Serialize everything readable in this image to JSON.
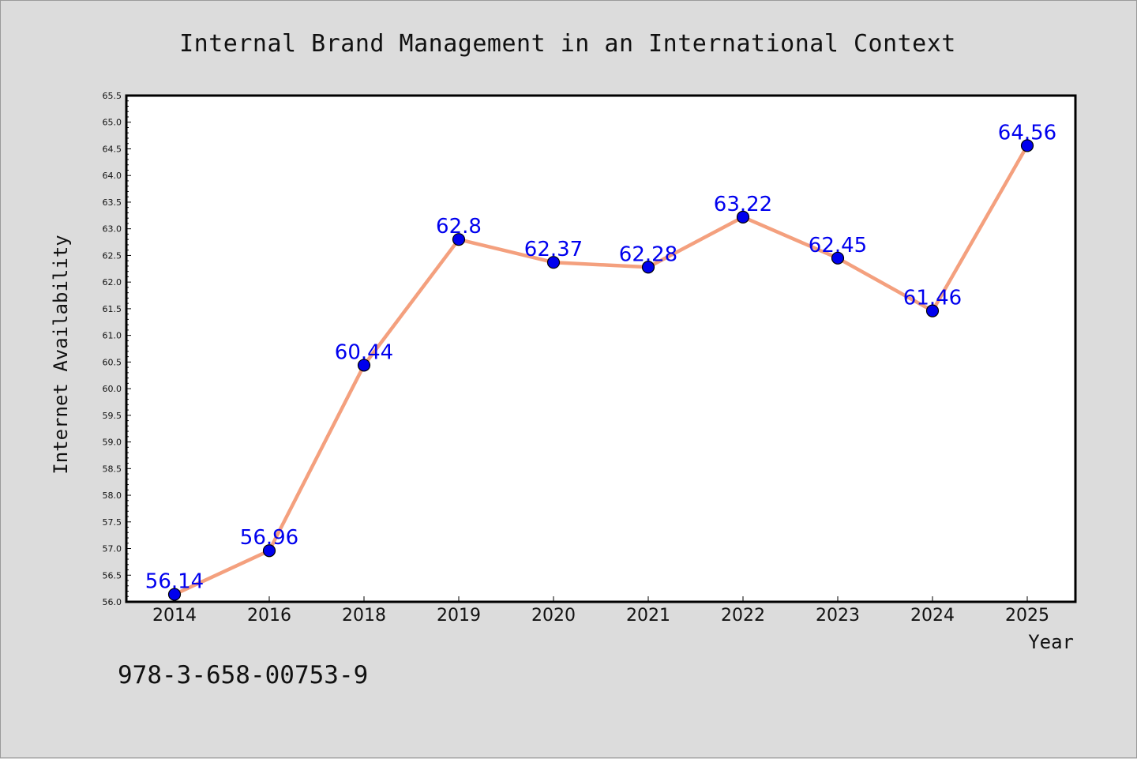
{
  "chart_data": {
    "type": "line",
    "title": "Internal Brand Management in an International Context",
    "xlabel": "Year",
    "ylabel": "Internet Availability",
    "categories": [
      "2014",
      "2016",
      "2018",
      "2019",
      "2020",
      "2021",
      "2022",
      "2023",
      "2024",
      "2025"
    ],
    "series": [
      {
        "values": [
          56.14,
          56.96,
          60.44,
          62.8,
          62.37,
          62.28,
          63.22,
          62.45,
          61.46,
          64.56
        ],
        "labels": [
          "56.14",
          "56.96",
          "60.44",
          "62.8",
          "62.37",
          "62.28",
          "63.22",
          "62.45",
          "61.46",
          "64.56"
        ],
        "line_color": "#f4a07e",
        "marker_color": "#0000ee"
      }
    ],
    "ylim": [
      56.0,
      65.5
    ],
    "yticks": [
      "56.0",
      "56.5",
      "57.0",
      "57.5",
      "58.0",
      "58.5",
      "59.0",
      "59.5",
      "60.0",
      "60.5",
      "61.0",
      "61.5",
      "62.0",
      "62.5",
      "63.0",
      "63.5",
      "64.0",
      "64.5",
      "65.0",
      "65.5"
    ],
    "grid": false,
    "legend": "none"
  },
  "footnote": "978-3-658-00753-9",
  "colors": {
    "background": "#dcdcdc",
    "plot_background": "#ffffff",
    "data_label": "#0000ee"
  }
}
